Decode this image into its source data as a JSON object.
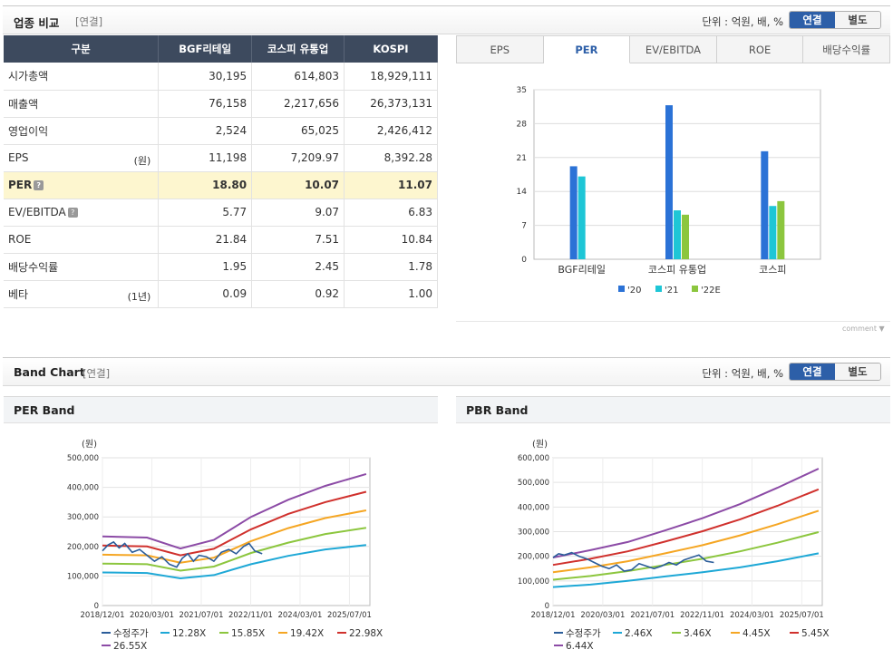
{
  "header1": {
    "title": "업종 비교",
    "sub": "[연결]",
    "unit": "단위 : 억원, 배, %",
    "toggle_on": "연결",
    "toggle_off": "별도"
  },
  "table": {
    "columns": [
      "구분",
      "BGF리테일",
      "코스피 유통업",
      "KOSPI"
    ],
    "rows": [
      {
        "label": "시가총액",
        "unit": "",
        "vals": [
          "30,195",
          "614,803",
          "18,929,111"
        ]
      },
      {
        "label": "매출액",
        "unit": "",
        "vals": [
          "76,158",
          "2,217,656",
          "26,373,131"
        ]
      },
      {
        "label": "영업이익",
        "unit": "",
        "vals": [
          "2,524",
          "65,025",
          "2,426,412"
        ]
      },
      {
        "label": "EPS",
        "unit": "(원)",
        "vals": [
          "11,198",
          "7,209.97",
          "8,392.28"
        ]
      },
      {
        "label": "PER",
        "unit": "",
        "vals": [
          "18.80",
          "10.07",
          "11.07"
        ]
      },
      {
        "label": "EV/EBITDA",
        "unit": "",
        "vals": [
          "5.77",
          "9.07",
          "6.83"
        ]
      },
      {
        "label": "ROE",
        "unit": "",
        "vals": [
          "21.84",
          "7.51",
          "10.84"
        ]
      },
      {
        "label": "배당수익률",
        "unit": "",
        "vals": [
          "1.95",
          "2.45",
          "1.78"
        ]
      },
      {
        "label": "베타",
        "unit": "(1년)",
        "vals": [
          "0.09",
          "0.92",
          "1.00"
        ]
      }
    ]
  },
  "tabs": [
    "EPS",
    "PER",
    "EV/EBITDA",
    "ROE",
    "배당수익률"
  ],
  "comment": "comment",
  "header2": {
    "title": "Band Chart",
    "sub": "[연결]",
    "unit": "단위 : 억원, 배, %",
    "toggle_on": "연결",
    "toggle_off": "별도"
  },
  "per_band_title": "PER Band",
  "pbr_band_title": "PBR Band",
  "colors": {
    "c20": "#2b72d6",
    "c21": "#1ec6d6",
    "c22": "#8cc63e",
    "band1": "#1ea8d6",
    "band2": "#8cc63e",
    "band3": "#f5a623",
    "band4": "#d0312d",
    "band5": "#8c4ba6",
    "price": "#2b5d9a"
  },
  "chart_data": [
    {
      "type": "bar",
      "title": "PER",
      "categories": [
        "BGF리테일",
        "코스피 유통업",
        "코스피"
      ],
      "series": [
        {
          "name": "'20",
          "values": [
            19.2,
            31.8,
            22.3
          ]
        },
        {
          "name": "'21",
          "values": [
            17.1,
            10.1,
            11.0
          ]
        },
        {
          "name": "'22E",
          "values": [
            null,
            9.2,
            12.0
          ]
        }
      ],
      "ylim": [
        0,
        35
      ],
      "yticks": [
        0,
        7,
        14,
        21,
        28,
        35
      ]
    },
    {
      "type": "line",
      "title": "PER Band",
      "ylabel": "(원)",
      "ylim": [
        0,
        500000
      ],
      "yticks": [
        "0",
        "100,000",
        "200,000",
        "300,000",
        "400,000",
        "500,000"
      ],
      "xticks": [
        "2018/12/01",
        "2020/03/01",
        "2021/07/01",
        "2022/11/01",
        "2024/03/01",
        "2025/07/01"
      ],
      "legend": [
        "수정주가",
        "12.28X",
        "15.85X",
        "19.42X",
        "22.98X",
        "26.55X"
      ],
      "bands": [
        [
          [
            0,
            112000
          ],
          [
            1.2,
            110000
          ],
          [
            2.1,
            92000
          ],
          [
            3.0,
            103000
          ],
          [
            4.0,
            140000
          ],
          [
            5.0,
            168000
          ],
          [
            6.0,
            190000
          ],
          [
            7.1,
            205000
          ]
        ],
        [
          [
            0,
            142000
          ],
          [
            1.2,
            140000
          ],
          [
            2.1,
            118000
          ],
          [
            3.0,
            132000
          ],
          [
            4.0,
            178000
          ],
          [
            5.0,
            213000
          ],
          [
            6.0,
            242000
          ],
          [
            7.1,
            263000
          ]
        ],
        [
          [
            0,
            172000
          ],
          [
            1.2,
            170000
          ],
          [
            2.1,
            145000
          ],
          [
            3.0,
            162000
          ],
          [
            4.0,
            218000
          ],
          [
            5.0,
            262000
          ],
          [
            6.0,
            296000
          ],
          [
            7.1,
            322000
          ]
        ],
        [
          [
            0,
            203000
          ],
          [
            1.2,
            200000
          ],
          [
            2.1,
            170000
          ],
          [
            3.0,
            192000
          ],
          [
            4.0,
            258000
          ],
          [
            5.0,
            310000
          ],
          [
            6.0,
            350000
          ],
          [
            7.1,
            385000
          ]
        ],
        [
          [
            0,
            234000
          ],
          [
            1.2,
            230000
          ],
          [
            2.1,
            193000
          ],
          [
            3.0,
            222000
          ],
          [
            4.0,
            300000
          ],
          [
            5.0,
            358000
          ],
          [
            6.0,
            405000
          ],
          [
            7.1,
            445000
          ]
        ]
      ],
      "price": [
        [
          0,
          185000
        ],
        [
          0.15,
          205000
        ],
        [
          0.3,
          215000
        ],
        [
          0.45,
          195000
        ],
        [
          0.6,
          210000
        ],
        [
          0.8,
          180000
        ],
        [
          1.0,
          190000
        ],
        [
          1.2,
          170000
        ],
        [
          1.4,
          150000
        ],
        [
          1.6,
          165000
        ],
        [
          1.8,
          140000
        ],
        [
          2.0,
          130000
        ],
        [
          2.15,
          160000
        ],
        [
          2.3,
          175000
        ],
        [
          2.45,
          150000
        ],
        [
          2.6,
          170000
        ],
        [
          2.8,
          165000
        ],
        [
          3.0,
          150000
        ],
        [
          3.2,
          180000
        ],
        [
          3.4,
          190000
        ],
        [
          3.6,
          175000
        ],
        [
          3.8,
          200000
        ],
        [
          3.95,
          210000
        ],
        [
          4.1,
          185000
        ],
        [
          4.3,
          175000
        ]
      ]
    },
    {
      "type": "line",
      "title": "PBR Band",
      "ylabel": "(원)",
      "ylim": [
        0,
        600000
      ],
      "yticks": [
        "0",
        "100,000",
        "200,000",
        "300,000",
        "400,000",
        "500,000",
        "600,000"
      ],
      "xticks": [
        "2018/12/01",
        "2020/03/01",
        "2021/07/01",
        "2022/11/01",
        "2024/03/01",
        "2025/07/01"
      ],
      "legend": [
        "수정주가",
        "2.46X",
        "3.46X",
        "4.45X",
        "5.45X",
        "6.44X"
      ],
      "bands": [
        [
          [
            0,
            75000
          ],
          [
            1.0,
            85000
          ],
          [
            2.0,
            100000
          ],
          [
            3.0,
            118000
          ],
          [
            4.0,
            135000
          ],
          [
            5.0,
            155000
          ],
          [
            6.0,
            180000
          ],
          [
            7.1,
            212000
          ]
        ],
        [
          [
            0,
            105000
          ],
          [
            1.0,
            120000
          ],
          [
            2.0,
            140000
          ],
          [
            3.0,
            165000
          ],
          [
            4.0,
            190000
          ],
          [
            5.0,
            220000
          ],
          [
            6.0,
            255000
          ],
          [
            7.1,
            298000
          ]
        ],
        [
          [
            0,
            135000
          ],
          [
            1.0,
            155000
          ],
          [
            2.0,
            180000
          ],
          [
            3.0,
            212000
          ],
          [
            4.0,
            245000
          ],
          [
            5.0,
            285000
          ],
          [
            6.0,
            330000
          ],
          [
            7.1,
            385000
          ]
        ],
        [
          [
            0,
            165000
          ],
          [
            1.0,
            190000
          ],
          [
            2.0,
            220000
          ],
          [
            3.0,
            260000
          ],
          [
            4.0,
            302000
          ],
          [
            5.0,
            350000
          ],
          [
            6.0,
            405000
          ],
          [
            7.1,
            472000
          ]
        ],
        [
          [
            0,
            195000
          ],
          [
            1.0,
            225000
          ],
          [
            2.0,
            258000
          ],
          [
            3.0,
            305000
          ],
          [
            4.0,
            355000
          ],
          [
            5.0,
            412000
          ],
          [
            6.0,
            478000
          ],
          [
            7.1,
            556000
          ]
        ]
      ],
      "price": [
        [
          0,
          195000
        ],
        [
          0.15,
          210000
        ],
        [
          0.3,
          205000
        ],
        [
          0.5,
          215000
        ],
        [
          0.7,
          200000
        ],
        [
          0.9,
          190000
        ],
        [
          1.1,
          175000
        ],
        [
          1.3,
          160000
        ],
        [
          1.5,
          150000
        ],
        [
          1.7,
          165000
        ],
        [
          1.9,
          140000
        ],
        [
          2.1,
          145000
        ],
        [
          2.3,
          170000
        ],
        [
          2.5,
          160000
        ],
        [
          2.7,
          150000
        ],
        [
          2.9,
          160000
        ],
        [
          3.1,
          175000
        ],
        [
          3.3,
          165000
        ],
        [
          3.5,
          185000
        ],
        [
          3.7,
          195000
        ],
        [
          3.9,
          205000
        ],
        [
          4.1,
          180000
        ],
        [
          4.3,
          175000
        ]
      ]
    }
  ]
}
